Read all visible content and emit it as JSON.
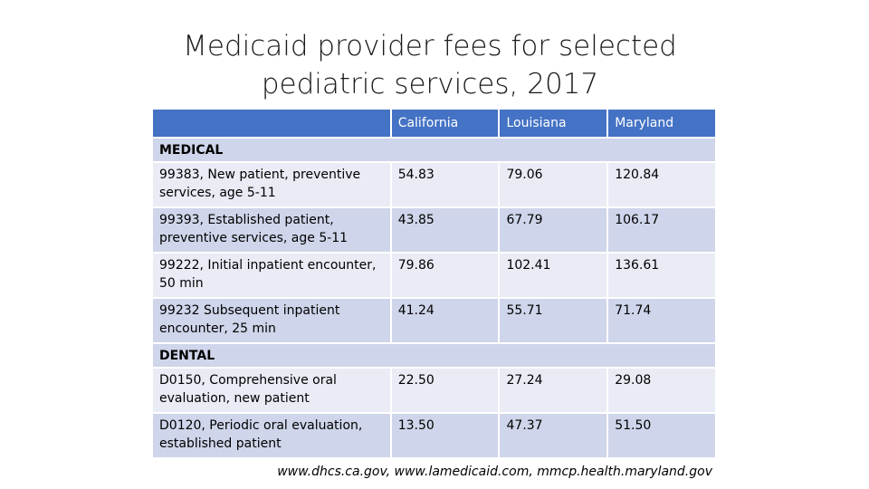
{
  "slide": {
    "title_line1": "Medicaid provider fees for selected",
    "title_line2": "pediatric services, 2017",
    "source": "www.dhcs.ca.gov, www.lamedicaid.com, mmcp.health.maryland.gov"
  },
  "table": {
    "columns": [
      "California",
      "Louisiana",
      "Maryland"
    ],
    "sections": [
      {
        "name": "MEDICAL",
        "rows": [
          {
            "label": "99383, New patient, preventive services, age 5-11",
            "values": [
              "54.83",
              "79.06",
              "120.84"
            ]
          },
          {
            "label": "99393, Established patient, preventive services, age 5-11",
            "values": [
              "43.85",
              "67.79",
              "106.17"
            ]
          },
          {
            "label": "99222, Initial inpatient encounter, 50 min",
            "values": [
              "79.86",
              "102.41",
              "136.61"
            ]
          },
          {
            "label": "99232 Subsequent inpatient encounter, 25 min",
            "values": [
              "41.24",
              "55.71",
              "71.74"
            ]
          }
        ]
      },
      {
        "name": "DENTAL",
        "rows": [
          {
            "label": "D0150, Comprehensive oral evaluation, new patient",
            "values": [
              "22.50",
              "27.24",
              "29.08"
            ]
          },
          {
            "label": "D0120, Periodic oral evaluation, established patient",
            "values": [
              "13.50",
              "47.37",
              "51.50"
            ]
          }
        ]
      }
    ]
  },
  "colors": {
    "header": "#4472c4",
    "row_dark": "#cfd5ea",
    "row_light": "#e9ebf5"
  }
}
